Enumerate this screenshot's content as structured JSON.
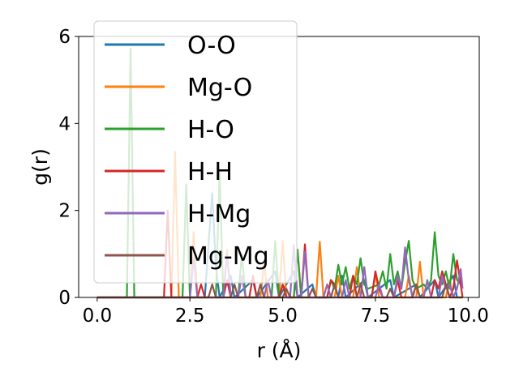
{
  "chart_data": {
    "type": "line",
    "title": "",
    "xlabel": "r (Å)",
    "ylabel": "g(r)",
    "xlim": [
      -0.5,
      10.3
    ],
    "ylim": [
      0,
      6
    ],
    "xticks": [
      "0.0",
      "2.5",
      "5.0",
      "7.5",
      "10.0"
    ],
    "xtick_values": [
      0,
      2.5,
      5,
      7.5,
      10
    ],
    "yticks": [
      "0",
      "2",
      "4",
      "6"
    ],
    "ytick_values": [
      0,
      2,
      4,
      6
    ],
    "grid": false,
    "legend_position": "upper-left",
    "series": [
      {
        "name": "O-O",
        "color": "#1f77b4",
        "x": [
          0,
          2.9,
          3.0,
          3.1,
          3.2,
          3.3,
          3.6,
          3.7,
          4.2,
          4.3,
          4.8,
          4.9,
          5.3,
          5.4,
          5.8,
          5.9,
          6.5,
          6.6,
          6.7,
          7.2,
          7.3,
          7.9,
          8.0,
          8.6,
          8.7,
          9.1,
          9.2,
          9.6,
          9.7,
          9.85
        ],
        "y": [
          0,
          0,
          1.2,
          2.4,
          0.7,
          0,
          0.5,
          0,
          0.4,
          0,
          0.6,
          0,
          0.6,
          0,
          0.3,
          0,
          0,
          0.5,
          0,
          0.4,
          0,
          0.4,
          0,
          0.3,
          0,
          0.4,
          0,
          0.5,
          0,
          0
        ]
      },
      {
        "name": "Mg-O",
        "color": "#ff7f0e",
        "x": [
          0,
          2.0,
          2.1,
          2.2,
          2.3,
          2.5,
          2.6,
          2.7,
          3.4,
          3.5,
          3.6,
          4.4,
          4.5,
          4.6,
          4.9,
          5.0,
          5.1,
          5.3,
          5.4,
          5.5,
          5.9,
          6.0,
          6.1,
          6.4,
          6.5,
          6.6,
          6.9,
          7.0,
          7.1,
          7.4,
          7.5,
          7.6,
          8.3,
          8.4,
          8.5,
          8.6,
          8.7,
          8.8,
          9.4,
          9.5,
          9.6,
          9.85
        ],
        "y": [
          0,
          0,
          3.35,
          0,
          0,
          0,
          1.5,
          0,
          0,
          1.1,
          0,
          0,
          0.8,
          0,
          0,
          1.3,
          0,
          0,
          1.1,
          0,
          0,
          1.28,
          0,
          0,
          0.5,
          0,
          0,
          0.7,
          0,
          0,
          0.55,
          0,
          0,
          0.5,
          0,
          0,
          0.82,
          0,
          0,
          0.4,
          0,
          0
        ]
      },
      {
        "name": "H-O",
        "color": "#2ca02c",
        "x": [
          0,
          0.8,
          0.9,
          1.0,
          2.3,
          2.4,
          2.5,
          3.2,
          3.3,
          3.4,
          3.8,
          3.9,
          4.0,
          4.7,
          4.8,
          4.9,
          5.3,
          5.4,
          5.5,
          6.2,
          6.3,
          6.4,
          6.5,
          6.6,
          6.7,
          6.8,
          6.9,
          7.0,
          7.1,
          7.2,
          7.3,
          7.6,
          7.7,
          7.8,
          7.9,
          8.0,
          8.1,
          8.2,
          8.3,
          8.4,
          8.5,
          8.6,
          8.8,
          8.9,
          9.0,
          9.1,
          9.2,
          9.3,
          9.4,
          9.5,
          9.6,
          9.7,
          9.8,
          9.85
        ],
        "y": [
          0,
          0,
          5.72,
          0,
          0,
          2.6,
          0,
          0,
          2.88,
          0,
          0,
          1.0,
          0,
          0,
          1.3,
          0,
          0,
          1.1,
          0,
          0,
          0.4,
          0.2,
          0.75,
          0.3,
          0.7,
          0.2,
          0.5,
          0.3,
          0.9,
          0.3,
          0.2,
          0.3,
          0.6,
          0.2,
          1.0,
          0.3,
          0.6,
          0.2,
          0.8,
          1.3,
          0.4,
          0.2,
          0.3,
          0.2,
          0.4,
          1.5,
          0.5,
          0.3,
          0.6,
          0.2,
          1.0,
          0.4,
          0.3,
          0.3
        ]
      },
      {
        "name": "H-H",
        "color": "#d62728",
        "x": [
          0,
          1.8,
          1.9,
          2.0,
          2.7,
          2.8,
          2.9,
          3.4,
          3.5,
          3.6,
          4.1,
          4.2,
          4.3,
          4.9,
          5.0,
          5.1,
          5.5,
          5.6,
          5.7,
          6.2,
          6.3,
          6.4,
          6.5,
          6.8,
          6.9,
          7.0,
          7.4,
          7.5,
          7.6,
          7.7,
          8.0,
          8.1,
          8.2,
          8.5,
          8.6,
          8.7,
          9.0,
          9.1,
          9.2,
          9.3,
          9.4,
          9.5,
          9.6,
          9.7,
          9.8,
          9.85
        ],
        "y": [
          0,
          0,
          2.0,
          0,
          0,
          0.3,
          0,
          0,
          0.4,
          0,
          0,
          0.5,
          0,
          0,
          0.3,
          0,
          0,
          1.22,
          0,
          0,
          0.4,
          0.3,
          0,
          0,
          0.5,
          0,
          0,
          0.6,
          0.2,
          0,
          0,
          0.4,
          0,
          0,
          0.3,
          0,
          0,
          0.4,
          0.2,
          0.6,
          0.3,
          0,
          0.2,
          0.85,
          0.3,
          0
        ]
      },
      {
        "name": "H-Mg",
        "color": "#9467bd",
        "x": [
          0,
          2.5,
          2.6,
          2.7,
          3.4,
          3.5,
          3.6,
          3.8,
          3.9,
          4.0,
          4.5,
          4.6,
          4.7,
          5.2,
          5.3,
          5.4,
          5.5,
          5.6,
          5.7,
          6.1,
          6.2,
          6.3,
          6.6,
          6.7,
          6.8,
          7.1,
          7.2,
          7.3,
          7.5,
          7.6,
          7.7,
          8.0,
          8.1,
          8.2,
          8.3,
          8.4,
          8.5,
          8.8,
          8.9,
          9.0,
          9.2,
          9.3,
          9.4,
          9.5,
          9.6,
          9.7,
          9.8,
          9.85
        ],
        "y": [
          0,
          0,
          0.9,
          0,
          0,
          1.0,
          0,
          0,
          0.5,
          0,
          0,
          0.4,
          0,
          0,
          1.2,
          0,
          0,
          1.05,
          0,
          0,
          0.3,
          0,
          0,
          0.4,
          0,
          0,
          0.7,
          0,
          0,
          0.3,
          0,
          0,
          0.5,
          0.2,
          1.15,
          0.4,
          0,
          0,
          0.4,
          0,
          0,
          0.5,
          0.2,
          0.3,
          0,
          0.2,
          0.65,
          0.2
        ]
      },
      {
        "name": "Mg-Mg",
        "color": "#8c564b",
        "x": [
          0,
          3.0,
          3.1,
          3.2,
          3.6,
          3.7,
          3.8,
          4.3,
          4.4,
          4.5,
          5.0,
          5.1,
          5.2,
          5.7,
          5.8,
          5.9,
          6.3,
          6.4,
          6.5,
          7.0,
          7.1,
          7.2,
          7.8,
          7.9,
          8.0,
          8.5,
          8.6,
          8.7,
          9.3,
          9.4,
          9.5,
          9.85
        ],
        "y": [
          0,
          0,
          0.3,
          0,
          0,
          0.3,
          0,
          0,
          0.3,
          0,
          0,
          0.2,
          0,
          0,
          0.2,
          0,
          0,
          0.3,
          0,
          0,
          0.3,
          0,
          0,
          0.2,
          0,
          0,
          0.3,
          0,
          0,
          0.3,
          0,
          0
        ]
      }
    ]
  }
}
